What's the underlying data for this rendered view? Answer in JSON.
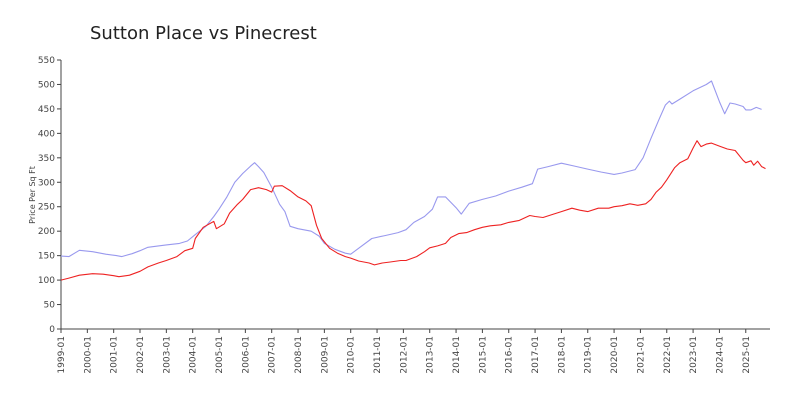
{
  "chart_data": {
    "type": "line",
    "title": "Sutton Place vs Pinecrest",
    "xlabel": "",
    "ylabel": "Price Per Sq Ft",
    "ylim": [
      0,
      550
    ],
    "yticks": [
      0,
      50,
      100,
      150,
      200,
      250,
      300,
      350,
      400,
      450,
      500,
      550
    ],
    "xlim": [
      1999.0,
      2025.92
    ],
    "xticks": [
      "1999-01",
      "2000-01",
      "2001-01",
      "2002-01",
      "2003-01",
      "2004-01",
      "2005-01",
      "2006-01",
      "2007-01",
      "2008-01",
      "2009-01",
      "2010-01",
      "2011-01",
      "2012-01",
      "2013-01",
      "2014-01",
      "2015-01",
      "2016-01",
      "2017-01",
      "2018-01",
      "2019-01",
      "2020-01",
      "2021-01",
      "2022-01",
      "2023-01",
      "2024-01",
      "2025-01"
    ],
    "grid": false,
    "legend": "none",
    "series": [
      {
        "color": "#9999ee",
        "points": [
          [
            1999.0,
            149
          ],
          [
            1999.3,
            148
          ],
          [
            1999.7,
            161
          ],
          [
            2000.2,
            158
          ],
          [
            2000.7,
            153
          ],
          [
            2001.1,
            150
          ],
          [
            2001.3,
            148
          ],
          [
            2001.7,
            154
          ],
          [
            2002.0,
            160
          ],
          [
            2002.3,
            167
          ],
          [
            2002.7,
            170
          ],
          [
            2003.0,
            172
          ],
          [
            2003.5,
            175
          ],
          [
            2003.8,
            180
          ],
          [
            2004.1,
            193
          ],
          [
            2004.5,
            210
          ],
          [
            2004.8,
            230
          ],
          [
            2005.0,
            245
          ],
          [
            2005.3,
            270
          ],
          [
            2005.6,
            300
          ],
          [
            2005.9,
            318
          ],
          [
            2006.2,
            333
          ],
          [
            2006.35,
            340
          ],
          [
            2006.5,
            332
          ],
          [
            2006.7,
            320
          ],
          [
            2007.0,
            290
          ],
          [
            2007.3,
            255
          ],
          [
            2007.5,
            240
          ],
          [
            2007.7,
            210
          ],
          [
            2008.0,
            205
          ],
          [
            2008.5,
            200
          ],
          [
            2008.8,
            190
          ],
          [
            2009.0,
            175
          ],
          [
            2009.4,
            163
          ],
          [
            2009.8,
            155
          ],
          [
            2010.0,
            153
          ],
          [
            2010.3,
            165
          ],
          [
            2010.8,
            185
          ],
          [
            2011.3,
            191
          ],
          [
            2011.8,
            197
          ],
          [
            2012.1,
            203
          ],
          [
            2012.4,
            218
          ],
          [
            2012.8,
            230
          ],
          [
            2013.1,
            245
          ],
          [
            2013.3,
            270
          ],
          [
            2013.6,
            270
          ],
          [
            2014.0,
            248
          ],
          [
            2014.2,
            235
          ],
          [
            2014.5,
            257
          ],
          [
            2015.0,
            265
          ],
          [
            2015.5,
            272
          ],
          [
            2016.0,
            282
          ],
          [
            2016.5,
            290
          ],
          [
            2016.9,
            297
          ],
          [
            2017.1,
            327
          ],
          [
            2017.5,
            332
          ],
          [
            2018.0,
            339
          ],
          [
            2018.5,
            333
          ],
          [
            2019.0,
            327
          ],
          [
            2019.5,
            321
          ],
          [
            2020.0,
            316
          ],
          [
            2020.3,
            319
          ],
          [
            2020.8,
            326
          ],
          [
            2021.1,
            350
          ],
          [
            2021.4,
            390
          ],
          [
            2021.7,
            428
          ],
          [
            2021.95,
            458
          ],
          [
            2022.1,
            466
          ],
          [
            2022.2,
            460
          ],
          [
            2022.5,
            470
          ],
          [
            2023.0,
            487
          ],
          [
            2023.5,
            500
          ],
          [
            2023.7,
            507
          ],
          [
            2024.0,
            465
          ],
          [
            2024.2,
            440
          ],
          [
            2024.4,
            462
          ],
          [
            2024.6,
            460
          ],
          [
            2024.9,
            455
          ],
          [
            2025.0,
            448
          ],
          [
            2025.2,
            448
          ],
          [
            2025.4,
            453
          ],
          [
            2025.6,
            449
          ]
        ]
      },
      {
        "color": "#ee2222",
        "points": [
          [
            1999.0,
            100
          ],
          [
            1999.3,
            104
          ],
          [
            1999.7,
            110
          ],
          [
            2000.2,
            113
          ],
          [
            2000.6,
            112
          ],
          [
            2001.0,
            109
          ],
          [
            2001.2,
            107
          ],
          [
            2001.6,
            110
          ],
          [
            2002.0,
            118
          ],
          [
            2002.3,
            127
          ],
          [
            2002.7,
            135
          ],
          [
            2003.0,
            140
          ],
          [
            2003.4,
            148
          ],
          [
            2003.7,
            160
          ],
          [
            2004.0,
            165
          ],
          [
            2004.1,
            185
          ],
          [
            2004.4,
            208
          ],
          [
            2004.8,
            220
          ],
          [
            2004.9,
            205
          ],
          [
            2005.2,
            215
          ],
          [
            2005.4,
            237
          ],
          [
            2005.7,
            255
          ],
          [
            2005.9,
            265
          ],
          [
            2006.2,
            285
          ],
          [
            2006.5,
            289
          ],
          [
            2006.8,
            285
          ],
          [
            2007.0,
            280
          ],
          [
            2007.1,
            292
          ],
          [
            2007.4,
            293
          ],
          [
            2007.7,
            283
          ],
          [
            2008.0,
            270
          ],
          [
            2008.3,
            262
          ],
          [
            2008.5,
            252
          ],
          [
            2008.7,
            212
          ],
          [
            2008.9,
            185
          ],
          [
            2009.2,
            165
          ],
          [
            2009.5,
            155
          ],
          [
            2009.8,
            148
          ],
          [
            2010.0,
            145
          ],
          [
            2010.3,
            139
          ],
          [
            2010.7,
            135
          ],
          [
            2010.9,
            131
          ],
          [
            2011.2,
            135
          ],
          [
            2011.5,
            137
          ],
          [
            2011.9,
            140
          ],
          [
            2012.1,
            140
          ],
          [
            2012.5,
            148
          ],
          [
            2012.8,
            158
          ],
          [
            2013.0,
            166
          ],
          [
            2013.3,
            170
          ],
          [
            2013.6,
            175
          ],
          [
            2013.8,
            187
          ],
          [
            2014.1,
            195
          ],
          [
            2014.4,
            197
          ],
          [
            2014.7,
            203
          ],
          [
            2015.0,
            208
          ],
          [
            2015.3,
            211
          ],
          [
            2015.7,
            213
          ],
          [
            2016.0,
            218
          ],
          [
            2016.4,
            222
          ],
          [
            2016.8,
            232
          ],
          [
            2017.0,
            230
          ],
          [
            2017.3,
            228
          ],
          [
            2017.7,
            235
          ],
          [
            2018.0,
            240
          ],
          [
            2018.4,
            247
          ],
          [
            2018.7,
            243
          ],
          [
            2019.0,
            240
          ],
          [
            2019.4,
            247
          ],
          [
            2019.8,
            247
          ],
          [
            2020.0,
            250
          ],
          [
            2020.3,
            252
          ],
          [
            2020.6,
            256
          ],
          [
            2020.9,
            253
          ],
          [
            2021.2,
            256
          ],
          [
            2021.4,
            265
          ],
          [
            2021.6,
            280
          ],
          [
            2021.8,
            290
          ],
          [
            2022.0,
            305
          ],
          [
            2022.3,
            330
          ],
          [
            2022.5,
            340
          ],
          [
            2022.8,
            348
          ],
          [
            2023.0,
            370
          ],
          [
            2023.15,
            385
          ],
          [
            2023.3,
            373
          ],
          [
            2023.5,
            378
          ],
          [
            2023.7,
            380
          ],
          [
            2024.0,
            374
          ],
          [
            2024.3,
            368
          ],
          [
            2024.6,
            365
          ],
          [
            2024.9,
            345
          ],
          [
            2025.0,
            340
          ],
          [
            2025.2,
            344
          ],
          [
            2025.3,
            335
          ],
          [
            2025.45,
            343
          ],
          [
            2025.6,
            332
          ],
          [
            2025.75,
            328
          ]
        ]
      }
    ]
  }
}
